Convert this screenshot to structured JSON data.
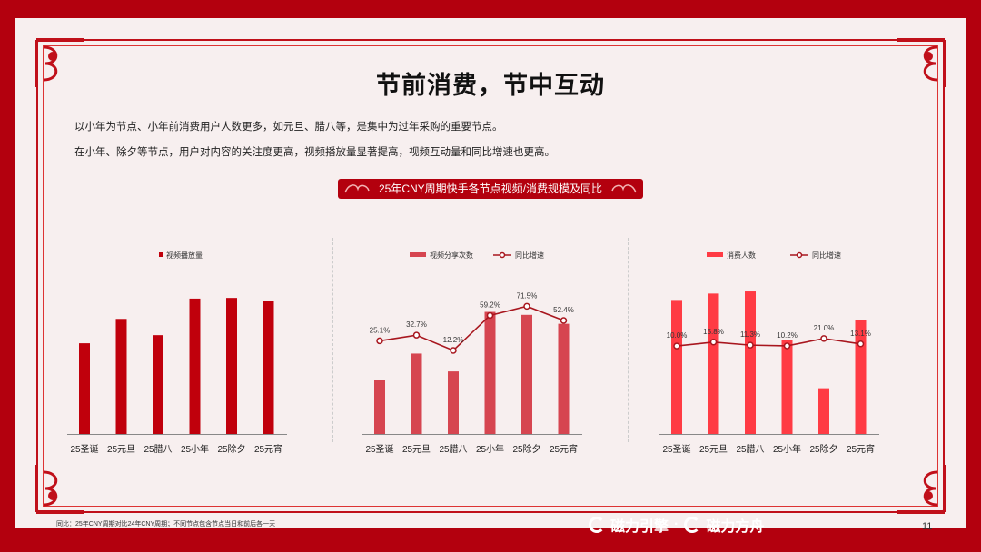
{
  "slide": {
    "title": "节前消费，节中互动",
    "paragraphs": [
      "以小年为节点、小年前消费用户人数更多，如元旦、腊八等，是集中为过年采购的重要节点。",
      "在小年、除夕等节点，用户对内容的关注度更高，视频播放量显著提高，视频互动量和同比增速也更高。"
    ],
    "banner": "25年CNY周期快手各节点视频/消费规模及同比",
    "footnote": "同比：25年CNY周期对比24年CNY周期；不同节点包含节点当日和前后各一天",
    "brand_left": "磁力引擎",
    "brand_sep": "·",
    "brand_right": "磁力方舟",
    "page_number": "11"
  },
  "colors": {
    "background": "#b3000e",
    "paper": "#f7efef",
    "bar1": "#c0000c",
    "bar2": "#d64550",
    "bar3": "#ff3b44",
    "line": "#a8161e"
  },
  "chart_data": [
    {
      "type": "bar",
      "categories": [
        "25圣诞",
        "25元旦",
        "25腊八",
        "25小年",
        "25除夕",
        "25元宵"
      ],
      "series": [
        {
          "name": "视频播放量",
          "values": [
            67,
            85,
            73,
            100,
            100.5,
            98
          ]
        }
      ],
      "ylim": [
        0,
        110
      ]
    },
    {
      "type": "bar+line",
      "categories": [
        "25圣诞",
        "25元旦",
        "25腊八",
        "25小年",
        "25除夕",
        "25元宵"
      ],
      "series": [
        {
          "name": "视频分享次数",
          "kind": "bar",
          "values": [
            36,
            54,
            42,
            82,
            80,
            74
          ]
        },
        {
          "name": "同比增速",
          "kind": "line",
          "values": [
            25.1,
            32.7,
            12.2,
            59.2,
            71.5,
            52.4
          ],
          "labels": [
            "25.1%",
            "32.7%",
            "12.2%",
            "59.2%",
            "71.5%",
            "52.4%"
          ]
        }
      ],
      "ylim": [
        0,
        100
      ],
      "line_ylim": [
        -100,
        100
      ]
    },
    {
      "type": "bar+line",
      "categories": [
        "25圣诞",
        "25元旦",
        "25腊八",
        "25小年",
        "25除夕",
        "25元宵"
      ],
      "series": [
        {
          "name": "消费人数",
          "kind": "bar",
          "values": [
            126,
            132,
            134,
            88,
            43,
            107
          ]
        },
        {
          "name": "同比增速",
          "kind": "line",
          "values": [
            10.0,
            15.8,
            11.3,
            10.2,
            21.0,
            13.1
          ],
          "labels": [
            "10.0%",
            "15.8%",
            "11.3%",
            "10.2%",
            "21.0%",
            "13.1%"
          ]
        }
      ],
      "ylim": [
        0,
        140
      ],
      "line_ylim": [
        -120,
        100
      ]
    }
  ]
}
